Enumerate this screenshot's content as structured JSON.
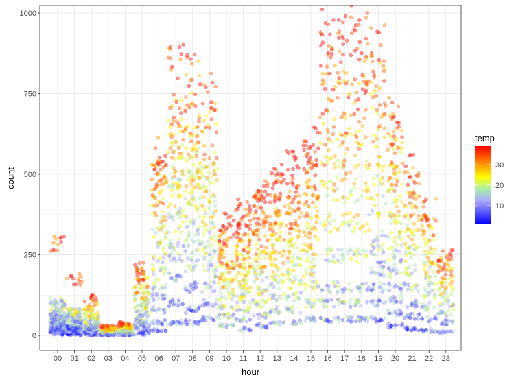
{
  "chart_data": {
    "type": "scatter",
    "title": "",
    "xlabel": "hour",
    "ylabel": "count",
    "categories": [
      "00",
      "01",
      "02",
      "03",
      "04",
      "05",
      "06",
      "07",
      "08",
      "09",
      "10",
      "11",
      "12",
      "13",
      "14",
      "15",
      "16",
      "17",
      "18",
      "19",
      "20",
      "21",
      "22",
      "23"
    ],
    "yticks": [
      0,
      250,
      500,
      750,
      1000
    ],
    "ylim": [
      0,
      1000
    ],
    "grid": true,
    "background": "#ffffff",
    "grid_color": "#ebebeb",
    "panel_border": "#333333",
    "point_opacity": 0.45,
    "legend": {
      "title": "temp",
      "position": "right",
      "ticks": [
        10,
        20,
        30
      ],
      "range": [
        1,
        39
      ],
      "colors": [
        {
          "value": 1,
          "color": "#0000ff"
        },
        {
          "value": 12,
          "color": "#aaaaff"
        },
        {
          "value": 18,
          "color": "#aaeeaa"
        },
        {
          "value": 24,
          "color": "#ffff00"
        },
        {
          "value": 39,
          "color": "#ff0000"
        }
      ]
    },
    "series": [
      {
        "hour": "00",
        "counts": [
          5,
          12,
          18,
          22,
          28,
          35,
          40,
          48,
          55,
          62,
          70,
          82,
          95,
          105,
          14,
          25,
          33,
          60,
          45,
          288
        ]
      },
      {
        "hour": "01",
        "counts": [
          3,
          8,
          12,
          18,
          22,
          28,
          34,
          40,
          48,
          55,
          62,
          72,
          80,
          175,
          25,
          15
        ]
      },
      {
        "hour": "02",
        "counts": [
          2,
          5,
          8,
          12,
          16,
          20,
          25,
          30,
          35,
          42,
          50,
          60,
          70,
          85,
          115
        ]
      },
      {
        "hour": "03",
        "counts": [
          1,
          3,
          5,
          7,
          9,
          11,
          13,
          15,
          18,
          21,
          24,
          27
        ]
      },
      {
        "hour": "04",
        "counts": [
          1,
          3,
          5,
          7,
          9,
          11,
          13,
          16,
          20,
          25,
          30,
          35
        ]
      },
      {
        "hour": "05",
        "counts": [
          5,
          15,
          25,
          35,
          45,
          55,
          70,
          85,
          100,
          120,
          140,
          160,
          185,
          210
        ]
      },
      {
        "hour": "06",
        "counts": [
          15,
          40,
          80,
          120,
          160,
          200,
          250,
          300,
          350,
          400,
          450,
          480,
          500,
          570
        ]
      },
      {
        "hour": "07",
        "counts": [
          40,
          100,
          180,
          250,
          300,
          350,
          400,
          450,
          500,
          550,
          600,
          650,
          700,
          840
        ]
      },
      {
        "hour": "08",
        "counts": [
          40,
          80,
          150,
          220,
          280,
          320,
          380,
          420,
          460,
          500,
          540,
          600,
          650,
          700,
          830
        ]
      },
      {
        "hour": "09",
        "counts": [
          50,
          100,
          150,
          200,
          250,
          300,
          350,
          400,
          450,
          500,
          550,
          650,
          760
        ]
      },
      {
        "hour": "10",
        "counts": [
          30,
          60,
          90,
          120,
          150,
          180,
          210,
          240,
          270,
          300,
          350
        ]
      },
      {
        "hour": "11",
        "counts": [
          20,
          50,
          80,
          110,
          140,
          170,
          200,
          230,
          260,
          290,
          320,
          360,
          400
        ]
      },
      {
        "hour": "12",
        "counts": [
          30,
          60,
          100,
          140,
          180,
          220,
          260,
          300,
          340,
          380,
          420,
          460
        ]
      },
      {
        "hour": "13",
        "counts": [
          40,
          80,
          120,
          160,
          200,
          240,
          280,
          320,
          360,
          400,
          450,
          490
        ]
      },
      {
        "hour": "14",
        "counts": [
          40,
          80,
          120,
          160,
          200,
          240,
          280,
          320,
          360,
          400,
          450,
          530
        ]
      },
      {
        "hour": "15",
        "counts": [
          50,
          100,
          150,
          200,
          250,
          300,
          350,
          400,
          450,
          500,
          550,
          600
        ]
      },
      {
        "hour": "16",
        "counts": [
          50,
          100,
          150,
          250,
          350,
          450,
          550,
          650,
          750,
          850,
          950
        ]
      },
      {
        "hour": "17",
        "counts": [
          50,
          100,
          150,
          250,
          350,
          450,
          550,
          650,
          750,
          850,
          970
        ]
      },
      {
        "hour": "18",
        "counts": [
          50,
          100,
          150,
          250,
          350,
          450,
          550,
          650,
          750,
          850,
          980
        ]
      },
      {
        "hour": "19",
        "counts": [
          50,
          100,
          150,
          200,
          250,
          300,
          400,
          500,
          600,
          700,
          800,
          890
        ]
      },
      {
        "hour": "20",
        "counts": [
          30,
          70,
          110,
          150,
          200,
          250,
          300,
          350,
          400,
          450,
          500,
          550,
          610,
          680
        ]
      },
      {
        "hour": "21",
        "counts": [
          20,
          60,
          100,
          150,
          200,
          250,
          300,
          350,
          400,
          450,
          520
        ]
      },
      {
        "hour": "22",
        "counts": [
          15,
          50,
          90,
          130,
          170,
          210,
          250,
          300,
          350,
          390
        ]
      },
      {
        "hour": "23",
        "counts": [
          10,
          40,
          70,
          100,
          130,
          160,
          190,
          220,
          250
        ]
      }
    ]
  }
}
